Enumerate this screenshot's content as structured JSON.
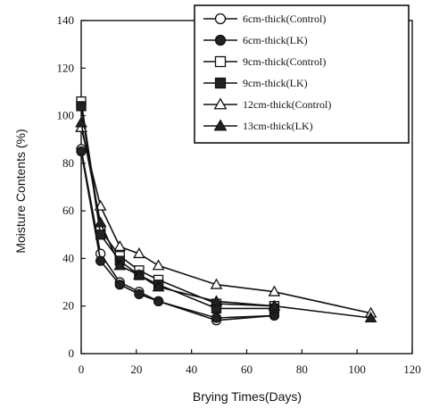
{
  "chart_data": {
    "type": "line",
    "xlabel": "Brying Times(Days)",
    "ylabel": "Moisture Contents (%)",
    "xlim": [
      0,
      120
    ],
    "ylim": [
      0,
      140
    ],
    "xticks": [
      "0",
      "20",
      "40",
      "60",
      "80",
      "100",
      "120"
    ],
    "yticks": [
      "0",
      "20",
      "40",
      "60",
      "80",
      "100",
      "120",
      "140"
    ],
    "grid": false,
    "legend_position": "top-right",
    "series": [
      {
        "name": "6cm-thick(Control)",
        "marker": "circle-open",
        "color": "#111111",
        "x": [
          0,
          7,
          14,
          21,
          28,
          49,
          70
        ],
        "y": [
          86,
          42,
          30,
          26,
          22,
          14,
          16
        ]
      },
      {
        "name": "6cm-thick(LK)",
        "marker": "circle-filled",
        "color": "#111111",
        "x": [
          0,
          7,
          14,
          21,
          28,
          49,
          70
        ],
        "y": [
          85,
          39,
          29,
          25,
          22,
          15,
          16
        ]
      },
      {
        "name": "9cm-thick(Control)",
        "marker": "square-open",
        "color": "#111111",
        "x": [
          0,
          7,
          14,
          21,
          28,
          49,
          70
        ],
        "y": [
          106,
          52,
          41,
          35,
          31,
          21,
          20
        ]
      },
      {
        "name": "9cm-thick(LK)",
        "marker": "square-filled",
        "color": "#111111",
        "x": [
          0,
          7,
          14,
          21,
          28,
          49,
          70
        ],
        "y": [
          104,
          50,
          39,
          33,
          29,
          19,
          19
        ]
      },
      {
        "name": "12cm-thick(Control)",
        "marker": "triangle-open",
        "color": "#111111",
        "x": [
          0,
          7,
          14,
          21,
          28,
          49,
          70,
          105
        ],
        "y": [
          95,
          62,
          45,
          42,
          37,
          29,
          26,
          17
        ]
      },
      {
        "name": "13cm-thick(LK)",
        "marker": "triangle-filled",
        "color": "#111111",
        "x": [
          0,
          7,
          14,
          21,
          28,
          49,
          70,
          105
        ],
        "y": [
          97,
          55,
          37,
          33,
          28,
          22,
          20,
          15
        ]
      }
    ]
  }
}
